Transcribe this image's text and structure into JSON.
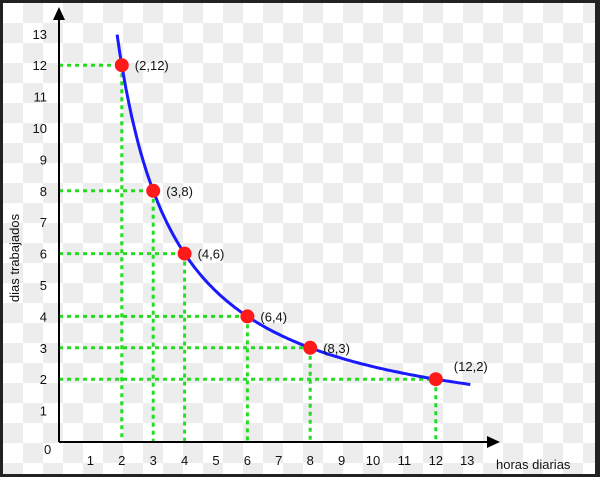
{
  "chart_data": {
    "type": "line",
    "title": "",
    "xlabel": "horas diarias",
    "ylabel": "dias trabajados",
    "xlim": [
      0,
      13
    ],
    "ylim": [
      0,
      13
    ],
    "x_ticks": [
      "1",
      "2",
      "3",
      "4",
      "5",
      "6",
      "7",
      "8",
      "9",
      "10",
      "11",
      "12",
      "13"
    ],
    "y_ticks": [
      "1",
      "2",
      "3",
      "4",
      "5",
      "6",
      "7",
      "8",
      "9",
      "10",
      "11",
      "12",
      "13"
    ],
    "origin_label": "0",
    "grid": false,
    "curve": {
      "equation": "y = 24/x",
      "x_range": [
        1.85,
        13.1
      ],
      "color": "#1a1aff"
    },
    "points": [
      {
        "x": 2,
        "y": 12,
        "label": "(2,12)"
      },
      {
        "x": 3,
        "y": 8,
        "label": "(3,8)"
      },
      {
        "x": 4,
        "y": 6,
        "label": "(4,6)"
      },
      {
        "x": 6,
        "y": 4,
        "label": "(6,4)"
      },
      {
        "x": 8,
        "y": 3,
        "label": "(8,3)"
      },
      {
        "x": 12,
        "y": 2,
        "label": "(12,2)"
      }
    ],
    "point_color": "#ff1a1a",
    "guide_color": "#22dd22"
  }
}
